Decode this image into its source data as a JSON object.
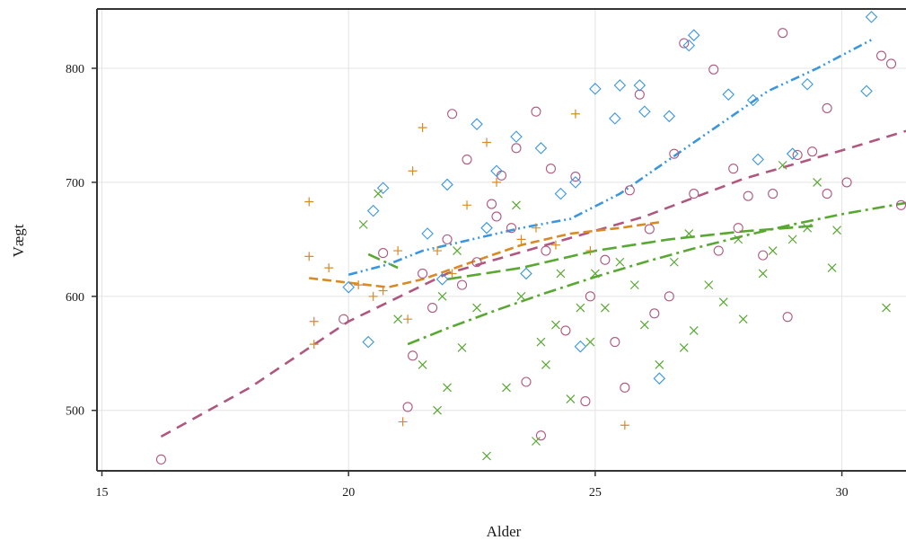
{
  "chart_data": {
    "type": "scatter",
    "title": "",
    "xlabel": "Alder",
    "ylabel": "Vægt",
    "xlim": [
      14.9,
      31.3
    ],
    "ylim": [
      447,
      852
    ],
    "x_ticks": [
      15,
      20,
      25,
      30
    ],
    "y_ticks": [
      500,
      600,
      700,
      800
    ],
    "grid": true,
    "legend": "none",
    "colors": {
      "pink": "#b0577f",
      "blue": "#3a96de",
      "orange": "#d98a22",
      "green": "#58a832",
      "grid": "#e4e4e4",
      "axis": "#333333"
    },
    "series": [
      {
        "marker": "circle",
        "color": "pink",
        "points": [
          [
            16.2,
            457
          ],
          [
            19.9,
            580
          ],
          [
            20.7,
            638
          ],
          [
            21.2,
            503
          ],
          [
            21.3,
            548
          ],
          [
            22.1,
            760
          ],
          [
            22.4,
            720
          ],
          [
            22.9,
            681
          ],
          [
            23.1,
            706
          ],
          [
            23.4,
            730
          ],
          [
            23.8,
            762
          ],
          [
            24.1,
            712
          ],
          [
            24.6,
            705
          ],
          [
            24.8,
            508
          ],
          [
            25.2,
            632
          ],
          [
            25.7,
            693
          ],
          [
            25.9,
            777
          ],
          [
            26.1,
            659
          ],
          [
            26.6,
            725
          ],
          [
            26.8,
            822
          ],
          [
            27.0,
            690
          ],
          [
            27.4,
            799
          ],
          [
            27.8,
            712
          ],
          [
            28.1,
            688
          ],
          [
            28.4,
            636
          ],
          [
            28.8,
            831
          ],
          [
            28.9,
            582
          ],
          [
            29.1,
            724
          ],
          [
            29.4,
            727
          ],
          [
            29.7,
            690
          ],
          [
            29.7,
            765
          ],
          [
            30.8,
            811
          ],
          [
            31.0,
            804
          ],
          [
            31.2,
            680
          ],
          [
            30.1,
            700
          ],
          [
            27.5,
            640
          ],
          [
            23.9,
            478
          ],
          [
            22.0,
            650
          ],
          [
            22.6,
            630
          ],
          [
            23.3,
            660
          ],
          [
            24.0,
            640
          ],
          [
            24.9,
            600
          ],
          [
            25.4,
            560
          ],
          [
            26.2,
            585
          ],
          [
            21.7,
            590
          ],
          [
            22.3,
            610
          ],
          [
            23.6,
            525
          ],
          [
            24.4,
            570
          ],
          [
            25.6,
            520
          ],
          [
            26.5,
            600
          ],
          [
            27.9,
            660
          ],
          [
            28.6,
            690
          ],
          [
            21.5,
            620
          ],
          [
            23.0,
            670
          ]
        ]
      },
      {
        "marker": "diamond",
        "color": "blue",
        "points": [
          [
            20.0,
            608
          ],
          [
            20.4,
            560
          ],
          [
            20.5,
            675
          ],
          [
            20.7,
            695
          ],
          [
            21.6,
            655
          ],
          [
            22.0,
            698
          ],
          [
            22.6,
            751
          ],
          [
            23.0,
            710
          ],
          [
            23.4,
            740
          ],
          [
            23.9,
            730
          ],
          [
            24.6,
            700
          ],
          [
            25.0,
            782
          ],
          [
            25.4,
            756
          ],
          [
            25.5,
            785
          ],
          [
            25.9,
            785
          ],
          [
            26.0,
            762
          ],
          [
            26.5,
            758
          ],
          [
            26.9,
            820
          ],
          [
            27.0,
            829
          ],
          [
            27.7,
            777
          ],
          [
            28.2,
            772
          ],
          [
            28.3,
            720
          ],
          [
            29.3,
            786
          ],
          [
            30.6,
            845
          ],
          [
            30.5,
            780
          ],
          [
            29.0,
            725
          ],
          [
            26.3,
            528
          ],
          [
            24.7,
            556
          ],
          [
            22.8,
            660
          ],
          [
            23.6,
            620
          ],
          [
            24.3,
            690
          ],
          [
            21.9,
            615
          ]
        ]
      },
      {
        "marker": "plus",
        "color": "orange",
        "points": [
          [
            19.2,
            683
          ],
          [
            19.2,
            635
          ],
          [
            19.3,
            578
          ],
          [
            19.3,
            558
          ],
          [
            19.6,
            625
          ],
          [
            20.2,
            610
          ],
          [
            20.7,
            605
          ],
          [
            21.0,
            640
          ],
          [
            21.1,
            490
          ],
          [
            21.3,
            710
          ],
          [
            21.5,
            748
          ],
          [
            22.8,
            735
          ],
          [
            23.0,
            700
          ],
          [
            23.8,
            660
          ],
          [
            24.2,
            645
          ],
          [
            25.6,
            487
          ],
          [
            24.6,
            760
          ],
          [
            22.4,
            680
          ],
          [
            21.8,
            640
          ],
          [
            22.1,
            620
          ],
          [
            23.5,
            650
          ],
          [
            24.9,
            640
          ],
          [
            21.2,
            580
          ],
          [
            20.5,
            600
          ]
        ]
      },
      {
        "marker": "cross",
        "color": "green",
        "points": [
          [
            20.3,
            663
          ],
          [
            20.6,
            690
          ],
          [
            21.0,
            580
          ],
          [
            21.5,
            540
          ],
          [
            21.8,
            500
          ],
          [
            22.0,
            520
          ],
          [
            22.3,
            555
          ],
          [
            22.8,
            460
          ],
          [
            23.2,
            520
          ],
          [
            23.5,
            600
          ],
          [
            23.8,
            473
          ],
          [
            24.0,
            540
          ],
          [
            24.2,
            575
          ],
          [
            24.5,
            510
          ],
          [
            24.9,
            560
          ],
          [
            25.2,
            590
          ],
          [
            25.5,
            630
          ],
          [
            26.0,
            575
          ],
          [
            26.3,
            540
          ],
          [
            26.8,
            555
          ],
          [
            27.0,
            570
          ],
          [
            27.3,
            610
          ],
          [
            27.6,
            595
          ],
          [
            28.0,
            580
          ],
          [
            28.4,
            620
          ],
          [
            28.6,
            640
          ],
          [
            29.0,
            650
          ],
          [
            29.3,
            660
          ],
          [
            29.5,
            700
          ],
          [
            29.9,
            658
          ],
          [
            29.8,
            625
          ],
          [
            30.9,
            590
          ],
          [
            25.8,
            610
          ],
          [
            24.7,
            590
          ],
          [
            23.9,
            560
          ],
          [
            22.6,
            590
          ],
          [
            22.2,
            640
          ],
          [
            26.9,
            655
          ],
          [
            27.9,
            650
          ],
          [
            28.8,
            715
          ],
          [
            23.4,
            680
          ],
          [
            25.0,
            620
          ],
          [
            26.6,
            630
          ],
          [
            21.9,
            600
          ],
          [
            24.3,
            620
          ]
        ]
      }
    ],
    "fit_lines": [
      {
        "color": "pink",
        "dash": "12 8",
        "points": [
          [
            16.2,
            477
          ],
          [
            18.0,
            520
          ],
          [
            20.0,
            578
          ],
          [
            22.0,
            620
          ],
          [
            24.0,
            645
          ],
          [
            26.0,
            670
          ],
          [
            28.0,
            703
          ],
          [
            30.0,
            728
          ],
          [
            31.3,
            745
          ]
        ]
      },
      {
        "color": "blue",
        "dash": "10 4 2 4 2 4",
        "points": [
          [
            20.0,
            619
          ],
          [
            20.8,
            628
          ],
          [
            21.5,
            640
          ],
          [
            22.5,
            650
          ],
          [
            23.5,
            660
          ],
          [
            24.5,
            668
          ],
          [
            25.5,
            690
          ],
          [
            26.5,
            720
          ],
          [
            27.5,
            750
          ],
          [
            28.5,
            780
          ],
          [
            29.5,
            800
          ],
          [
            30.6,
            825
          ]
        ]
      },
      {
        "color": "orange",
        "dash": "10 5",
        "points": [
          [
            19.2,
            616
          ],
          [
            20.0,
            612
          ],
          [
            20.8,
            608
          ],
          [
            21.5,
            615
          ],
          [
            22.5,
            630
          ],
          [
            23.5,
            645
          ],
          [
            24.5,
            655
          ],
          [
            25.5,
            660
          ],
          [
            26.3,
            665
          ]
        ]
      },
      {
        "color": "green",
        "dash": "14 5 3 5",
        "points": [
          [
            20.4,
            637
          ],
          [
            21.0,
            625
          ]
        ]
      },
      {
        "color": "green",
        "dash": "14 5 3 5",
        "points": [
          [
            21.2,
            558
          ],
          [
            22.0,
            572
          ],
          [
            23.0,
            588
          ],
          [
            24.0,
            603
          ],
          [
            25.0,
            617
          ],
          [
            26.0,
            630
          ],
          [
            27.0,
            642
          ],
          [
            28.0,
            653
          ],
          [
            29.0,
            663
          ],
          [
            30.0,
            672
          ],
          [
            31.3,
            682
          ]
        ]
      },
      {
        "color": "green",
        "dash": "16 6",
        "points": [
          [
            22.0,
            615
          ],
          [
            23.5,
            625
          ],
          [
            25.0,
            640
          ],
          [
            26.5,
            650
          ],
          [
            28.0,
            657
          ],
          [
            29.5,
            662
          ]
        ]
      }
    ]
  }
}
